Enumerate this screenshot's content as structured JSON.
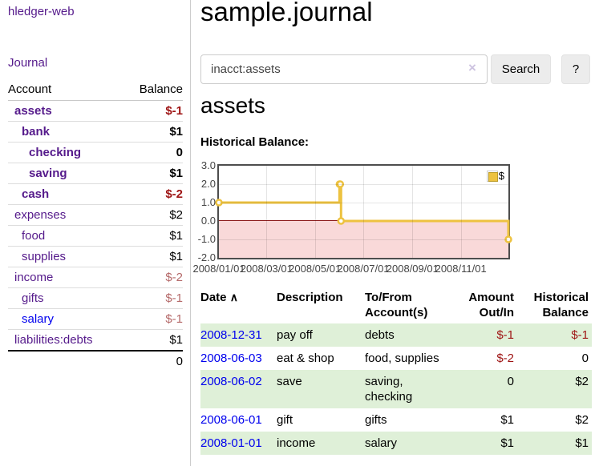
{
  "colors": {
    "link_purple": "#551a8b",
    "link_blue": "#0000ee",
    "neg_strong": "#9e1414",
    "neg_soft": "#b56a6a",
    "row_green": "#dff0d8",
    "chart_gold": "#edc240",
    "chart_neg_region": "#f9d9d9",
    "chart_zero_line": "#8b1a1a"
  },
  "sidebar": {
    "brand": "hledger-web",
    "journal_link": "Journal",
    "accounts": {
      "headers": {
        "account": "Account",
        "balance": "Balance"
      },
      "rows": [
        {
          "name": "assets",
          "balance": "$-1",
          "level": 1,
          "bold": true,
          "link": "purple"
        },
        {
          "name": "bank",
          "balance": "$1",
          "level": 2,
          "bold": true,
          "link": "purple"
        },
        {
          "name": "checking",
          "balance": "0",
          "level": 3,
          "bold": true,
          "link": "purple"
        },
        {
          "name": "saving",
          "balance": "$1",
          "level": 3,
          "bold": true,
          "link": "purple"
        },
        {
          "name": "cash",
          "balance": "$-2",
          "level": 2,
          "bold": true,
          "link": "purple"
        },
        {
          "name": "expenses",
          "balance": "$2",
          "level": 1,
          "bold": false,
          "link": "purple"
        },
        {
          "name": "food",
          "balance": "$1",
          "level": 2,
          "bold": false,
          "link": "purple"
        },
        {
          "name": "supplies",
          "balance": "$1",
          "level": 2,
          "bold": false,
          "link": "purple"
        },
        {
          "name": "income",
          "balance": "$-2",
          "level": 1,
          "bold": false,
          "link": "purple"
        },
        {
          "name": "gifts",
          "balance": "$-1",
          "level": 2,
          "bold": false,
          "link": "purple"
        },
        {
          "name": "salary",
          "balance": "$-1",
          "level": 2,
          "bold": false,
          "link": "blue"
        },
        {
          "name": "liabilities:debts",
          "balance": "$1",
          "level": 1,
          "bold": false,
          "link": "purple"
        }
      ],
      "total": "0"
    }
  },
  "header": {
    "title": "sample.journal"
  },
  "search": {
    "query": "inacct:assets",
    "clear_icon": "×",
    "search_label": "Search",
    "help_label": "?"
  },
  "main": {
    "account_heading": "assets",
    "chart_label": "Historical Balance:"
  },
  "chart_data": {
    "type": "line",
    "step": true,
    "title": "Historical Balance:",
    "series": [
      {
        "name": "$",
        "color": "#edc240",
        "x": [
          "2008-01-01",
          "2008-06-01",
          "2008-06-02",
          "2008-06-03",
          "2008-12-31"
        ],
        "y": [
          1,
          2,
          2,
          0,
          -1
        ]
      }
    ],
    "xlim": [
      "2008-01-01",
      "2008-12-31"
    ],
    "ylim": [
      -2,
      3
    ],
    "yticks": [
      {
        "value": 3,
        "label": "3.0"
      },
      {
        "value": 2,
        "label": "2.0"
      },
      {
        "value": 1,
        "label": "1.0"
      },
      {
        "value": 0,
        "label": "0.0"
      },
      {
        "value": -1,
        "label": "-1.0"
      },
      {
        "value": -2,
        "label": "-2.0"
      }
    ],
    "xticks": [
      {
        "date": "2008-01-01",
        "label": "2008/01/01"
      },
      {
        "date": "2008-03-01",
        "label": "2008/03/01"
      },
      {
        "date": "2008-05-01",
        "label": "2008/05/01"
      },
      {
        "date": "2008-07-01",
        "label": "2008/07/01"
      },
      {
        "date": "2008-09-01",
        "label": "2008/09/01"
      },
      {
        "date": "2008-11-01",
        "label": "2008/11/01"
      }
    ],
    "legend": {
      "label": "$",
      "position": "top-right"
    },
    "grid": true,
    "negative_region_shaded": true
  },
  "transactions": {
    "headers": {
      "date": "Date",
      "sort_icon": "∧",
      "description": "Description",
      "accounts": "To/From Account(s)",
      "amount": "Amount Out/In",
      "balance": "Historical Balance"
    },
    "rows": [
      {
        "date": "2008-12-31",
        "description": "pay off",
        "accounts": "debts",
        "amount": "$-1",
        "balance": "$-1"
      },
      {
        "date": "2008-06-03",
        "description": "eat & shop",
        "accounts": "food, supplies",
        "amount": "$-2",
        "balance": "0"
      },
      {
        "date": "2008-06-02",
        "description": "save",
        "accounts": "saving, checking",
        "amount": "0",
        "balance": "$2"
      },
      {
        "date": "2008-06-01",
        "description": "gift",
        "accounts": "gifts",
        "amount": "$1",
        "balance": "$2"
      },
      {
        "date": "2008-01-01",
        "description": "income",
        "accounts": "salary",
        "amount": "$1",
        "balance": "$1"
      }
    ]
  }
}
